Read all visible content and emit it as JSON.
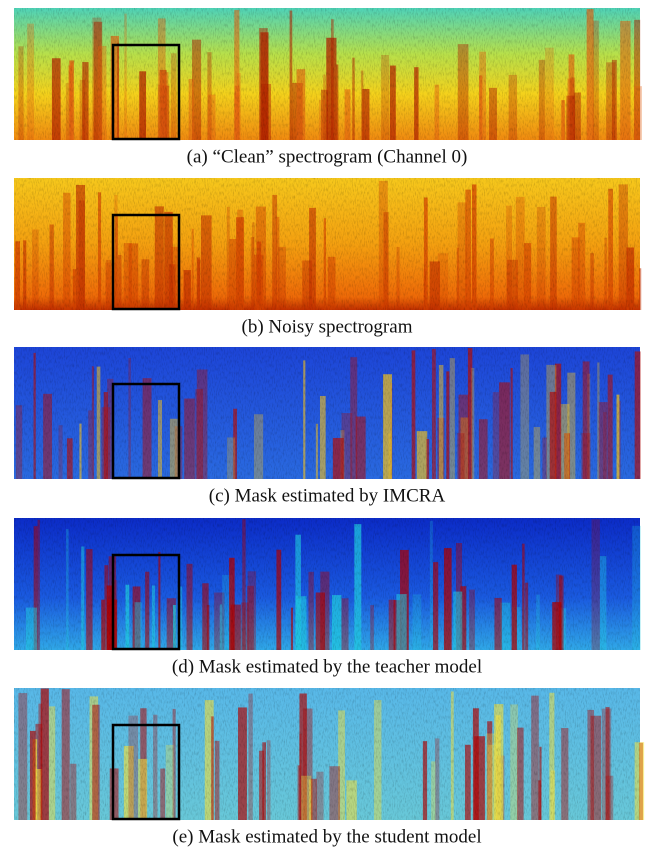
{
  "panels": [
    {
      "caption": "(a) “Clean” spectrogram (Channel 0)"
    },
    {
      "caption": "(b) Noisy spectrogram"
    },
    {
      "caption": "(c) Mask estimated by IMCRA"
    },
    {
      "caption": "(d) Mask estimated by the teacher model"
    },
    {
      "caption": "(e) Mask estimated by the student model"
    }
  ]
}
